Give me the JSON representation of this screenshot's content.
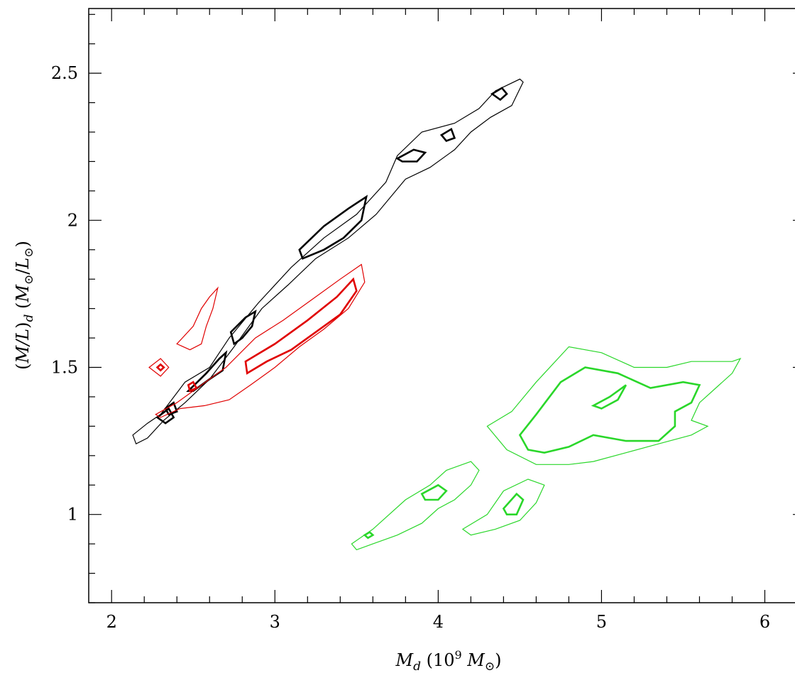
{
  "chart_data": {
    "type": "contour",
    "xlabel": {
      "sym": "M",
      "sub": "d",
      "rest": " (10",
      "sup": "9",
      "tail_sym": " M",
      "tail_sub": "⊙",
      "close": ")"
    },
    "ylabel": {
      "open": "(",
      "sym": "M/L",
      "close": ")",
      "sub": "d",
      "rest": " (",
      "num": "M",
      "num_sub": "⊙",
      "slash": "/",
      "den": "L",
      "den_sub": "⊙",
      "end": ")"
    },
    "xlim": [
      1.86,
      6.25
    ],
    "ylim": [
      0.7,
      2.72
    ],
    "x_ticks": [
      2,
      3,
      4,
      5,
      6
    ],
    "x_tick_labels": [
      "2",
      "3",
      "4",
      "5",
      "6"
    ],
    "y_ticks": [
      1,
      1.5,
      2,
      2.5
    ],
    "y_tick_labels": [
      "1",
      "1.5",
      "2",
      "2.5"
    ],
    "x_minor_step": 0.2,
    "y_minor_step": 0.1,
    "grid": false,
    "colors": {
      "black": "#000000",
      "red": "#e00000",
      "green": "#2ad72a"
    },
    "contours": [
      {
        "color": "black",
        "level": "outer",
        "points": [
          [
            2.13,
            1.27
          ],
          [
            2.22,
            1.31
          ],
          [
            2.3,
            1.34
          ],
          [
            2.45,
            1.45
          ],
          [
            2.6,
            1.5
          ],
          [
            2.72,
            1.6
          ],
          [
            2.9,
            1.72
          ],
          [
            3.1,
            1.84
          ],
          [
            3.3,
            1.94
          ],
          [
            3.5,
            2.02
          ],
          [
            3.68,
            2.13
          ],
          [
            3.75,
            2.22
          ],
          [
            3.9,
            2.3
          ],
          [
            4.1,
            2.33
          ],
          [
            4.25,
            2.38
          ],
          [
            4.35,
            2.44
          ],
          [
            4.5,
            2.48
          ],
          [
            4.52,
            2.47
          ],
          [
            4.45,
            2.39
          ],
          [
            4.32,
            2.35
          ],
          [
            4.2,
            2.3
          ],
          [
            4.1,
            2.24
          ],
          [
            3.95,
            2.18
          ],
          [
            3.8,
            2.14
          ],
          [
            3.62,
            2.02
          ],
          [
            3.45,
            1.94
          ],
          [
            3.25,
            1.87
          ],
          [
            3.08,
            1.78
          ],
          [
            2.92,
            1.7
          ],
          [
            2.75,
            1.57
          ],
          [
            2.6,
            1.46
          ],
          [
            2.45,
            1.38
          ],
          [
            2.32,
            1.32
          ],
          [
            2.22,
            1.26
          ],
          [
            2.15,
            1.24
          ],
          [
            2.13,
            1.27
          ]
        ]
      },
      {
        "color": "black",
        "level": "inner",
        "points": [
          [
            3.15,
            1.9
          ],
          [
            3.3,
            1.98
          ],
          [
            3.45,
            2.04
          ],
          [
            3.56,
            2.08
          ],
          [
            3.53,
            2.0
          ],
          [
            3.42,
            1.94
          ],
          [
            3.3,
            1.9
          ],
          [
            3.17,
            1.87
          ],
          [
            3.15,
            1.9
          ]
        ]
      },
      {
        "color": "black",
        "level": "inner",
        "points": [
          [
            2.73,
            1.62
          ],
          [
            2.82,
            1.67
          ],
          [
            2.88,
            1.69
          ],
          [
            2.86,
            1.64
          ],
          [
            2.8,
            1.6
          ],
          [
            2.75,
            1.58
          ],
          [
            2.73,
            1.62
          ]
        ]
      },
      {
        "color": "black",
        "level": "inner",
        "points": [
          [
            2.47,
            1.42
          ],
          [
            2.58,
            1.48
          ],
          [
            2.66,
            1.53
          ],
          [
            2.7,
            1.55
          ],
          [
            2.68,
            1.49
          ],
          [
            2.6,
            1.46
          ],
          [
            2.5,
            1.42
          ],
          [
            2.47,
            1.42
          ]
        ]
      },
      {
        "color": "black",
        "level": "inner",
        "points": [
          [
            2.33,
            1.36
          ],
          [
            2.38,
            1.38
          ],
          [
            2.4,
            1.35
          ],
          [
            2.35,
            1.34
          ],
          [
            2.33,
            1.36
          ]
        ]
      },
      {
        "color": "black",
        "level": "inner",
        "points": [
          [
            2.28,
            1.33
          ],
          [
            2.35,
            1.36
          ],
          [
            2.38,
            1.33
          ],
          [
            2.33,
            1.31
          ],
          [
            2.28,
            1.33
          ]
        ]
      },
      {
        "color": "black",
        "level": "inner",
        "points": [
          [
            3.75,
            2.21
          ],
          [
            3.85,
            2.24
          ],
          [
            3.92,
            2.23
          ],
          [
            3.87,
            2.2
          ],
          [
            3.78,
            2.2
          ],
          [
            3.75,
            2.21
          ]
        ]
      },
      {
        "color": "black",
        "level": "inner",
        "points": [
          [
            4.02,
            2.29
          ],
          [
            4.08,
            2.31
          ],
          [
            4.1,
            2.28
          ],
          [
            4.05,
            2.27
          ],
          [
            4.02,
            2.29
          ]
        ]
      },
      {
        "color": "black",
        "level": "inner",
        "points": [
          [
            4.33,
            2.43
          ],
          [
            4.39,
            2.45
          ],
          [
            4.42,
            2.43
          ],
          [
            4.38,
            2.41
          ],
          [
            4.33,
            2.43
          ]
        ]
      },
      {
        "color": "red",
        "level": "outer",
        "points": [
          [
            2.27,
            1.34
          ],
          [
            2.4,
            1.38
          ],
          [
            2.55,
            1.44
          ],
          [
            2.7,
            1.5
          ],
          [
            2.88,
            1.6
          ],
          [
            3.05,
            1.66
          ],
          [
            3.25,
            1.74
          ],
          [
            3.4,
            1.8
          ],
          [
            3.53,
            1.85
          ],
          [
            3.55,
            1.79
          ],
          [
            3.45,
            1.7
          ],
          [
            3.3,
            1.63
          ],
          [
            3.15,
            1.57
          ],
          [
            3.0,
            1.5
          ],
          [
            2.85,
            1.44
          ],
          [
            2.72,
            1.39
          ],
          [
            2.57,
            1.37
          ],
          [
            2.42,
            1.36
          ],
          [
            2.3,
            1.33
          ],
          [
            2.27,
            1.34
          ]
        ]
      },
      {
        "color": "red",
        "level": "outer",
        "points": [
          [
            2.4,
            1.58
          ],
          [
            2.5,
            1.64
          ],
          [
            2.55,
            1.7
          ],
          [
            2.6,
            1.74
          ],
          [
            2.65,
            1.77
          ],
          [
            2.62,
            1.7
          ],
          [
            2.58,
            1.64
          ],
          [
            2.55,
            1.58
          ],
          [
            2.48,
            1.56
          ],
          [
            2.4,
            1.58
          ]
        ]
      },
      {
        "color": "red",
        "level": "outer",
        "points": [
          [
            2.23,
            1.5
          ],
          [
            2.3,
            1.53
          ],
          [
            2.35,
            1.5
          ],
          [
            2.3,
            1.47
          ],
          [
            2.23,
            1.5
          ]
        ]
      },
      {
        "color": "red",
        "level": "inner",
        "points": [
          [
            2.82,
            1.52
          ],
          [
            3.0,
            1.58
          ],
          [
            3.2,
            1.66
          ],
          [
            3.38,
            1.74
          ],
          [
            3.48,
            1.8
          ],
          [
            3.5,
            1.76
          ],
          [
            3.4,
            1.68
          ],
          [
            3.25,
            1.62
          ],
          [
            3.1,
            1.56
          ],
          [
            2.95,
            1.52
          ],
          [
            2.83,
            1.48
          ],
          [
            2.82,
            1.52
          ]
        ]
      },
      {
        "color": "red",
        "level": "inner",
        "points": [
          [
            2.28,
            1.5
          ],
          [
            2.3,
            1.51
          ],
          [
            2.32,
            1.5
          ],
          [
            2.3,
            1.49
          ],
          [
            2.28,
            1.5
          ]
        ]
      },
      {
        "color": "red",
        "level": "inner",
        "points": [
          [
            2.47,
            1.44
          ],
          [
            2.5,
            1.45
          ],
          [
            2.52,
            1.43
          ],
          [
            2.48,
            1.42
          ],
          [
            2.47,
            1.44
          ]
        ]
      },
      {
        "color": "green",
        "level": "outer",
        "points": [
          [
            4.3,
            1.3
          ],
          [
            4.45,
            1.35
          ],
          [
            4.6,
            1.45
          ],
          [
            4.8,
            1.57
          ],
          [
            5.0,
            1.55
          ],
          [
            5.2,
            1.5
          ],
          [
            5.4,
            1.5
          ],
          [
            5.55,
            1.52
          ],
          [
            5.7,
            1.52
          ],
          [
            5.8,
            1.52
          ],
          [
            5.85,
            1.53
          ],
          [
            5.8,
            1.48
          ],
          [
            5.7,
            1.43
          ],
          [
            5.6,
            1.38
          ],
          [
            5.55,
            1.32
          ],
          [
            5.65,
            1.3
          ],
          [
            5.55,
            1.27
          ],
          [
            5.35,
            1.24
          ],
          [
            5.15,
            1.21
          ],
          [
            4.95,
            1.18
          ],
          [
            4.8,
            1.17
          ],
          [
            4.6,
            1.17
          ],
          [
            4.42,
            1.22
          ],
          [
            4.3,
            1.3
          ]
        ]
      },
      {
        "color": "green",
        "level": "inner",
        "points": [
          [
            4.5,
            1.27
          ],
          [
            4.6,
            1.34
          ],
          [
            4.75,
            1.45
          ],
          [
            4.9,
            1.5
          ],
          [
            5.1,
            1.48
          ],
          [
            5.3,
            1.43
          ],
          [
            5.5,
            1.45
          ],
          [
            5.6,
            1.44
          ],
          [
            5.55,
            1.38
          ],
          [
            5.45,
            1.35
          ],
          [
            5.45,
            1.3
          ],
          [
            5.35,
            1.25
          ],
          [
            5.15,
            1.25
          ],
          [
            4.95,
            1.27
          ],
          [
            4.8,
            1.23
          ],
          [
            4.65,
            1.21
          ],
          [
            4.55,
            1.22
          ],
          [
            4.5,
            1.27
          ]
        ]
      },
      {
        "color": "green",
        "level": "inner",
        "points": [
          [
            4.95,
            1.37
          ],
          [
            5.05,
            1.4
          ],
          [
            5.15,
            1.44
          ],
          [
            5.1,
            1.39
          ],
          [
            5.0,
            1.36
          ],
          [
            4.95,
            1.37
          ]
        ]
      },
      {
        "color": "green",
        "level": "outer",
        "points": [
          [
            3.47,
            0.9
          ],
          [
            3.6,
            0.95
          ],
          [
            3.8,
            1.05
          ],
          [
            3.95,
            1.1
          ],
          [
            4.05,
            1.15
          ],
          [
            4.2,
            1.18
          ],
          [
            4.25,
            1.15
          ],
          [
            4.2,
            1.1
          ],
          [
            4.1,
            1.05
          ],
          [
            4.0,
            1.02
          ],
          [
            3.9,
            0.97
          ],
          [
            3.75,
            0.93
          ],
          [
            3.6,
            0.9
          ],
          [
            3.5,
            0.88
          ],
          [
            3.47,
            0.9
          ]
        ]
      },
      {
        "color": "green",
        "level": "outer",
        "points": [
          [
            4.15,
            0.95
          ],
          [
            4.3,
            1.0
          ],
          [
            4.4,
            1.08
          ],
          [
            4.55,
            1.12
          ],
          [
            4.65,
            1.1
          ],
          [
            4.6,
            1.04
          ],
          [
            4.5,
            0.98
          ],
          [
            4.35,
            0.95
          ],
          [
            4.2,
            0.93
          ],
          [
            4.15,
            0.95
          ]
        ]
      },
      {
        "color": "green",
        "level": "inner",
        "points": [
          [
            3.55,
            0.93
          ],
          [
            3.58,
            0.94
          ],
          [
            3.6,
            0.93
          ],
          [
            3.57,
            0.92
          ],
          [
            3.55,
            0.93
          ]
        ]
      },
      {
        "color": "green",
        "level": "inner",
        "points": [
          [
            3.9,
            1.07
          ],
          [
            4.0,
            1.1
          ],
          [
            4.05,
            1.08
          ],
          [
            4.0,
            1.05
          ],
          [
            3.92,
            1.05
          ],
          [
            3.9,
            1.07
          ]
        ]
      },
      {
        "color": "green",
        "level": "inner",
        "points": [
          [
            4.4,
            1.02
          ],
          [
            4.48,
            1.07
          ],
          [
            4.52,
            1.05
          ],
          [
            4.48,
            1.0
          ],
          [
            4.42,
            1.0
          ],
          [
            4.4,
            1.02
          ]
        ]
      }
    ]
  }
}
